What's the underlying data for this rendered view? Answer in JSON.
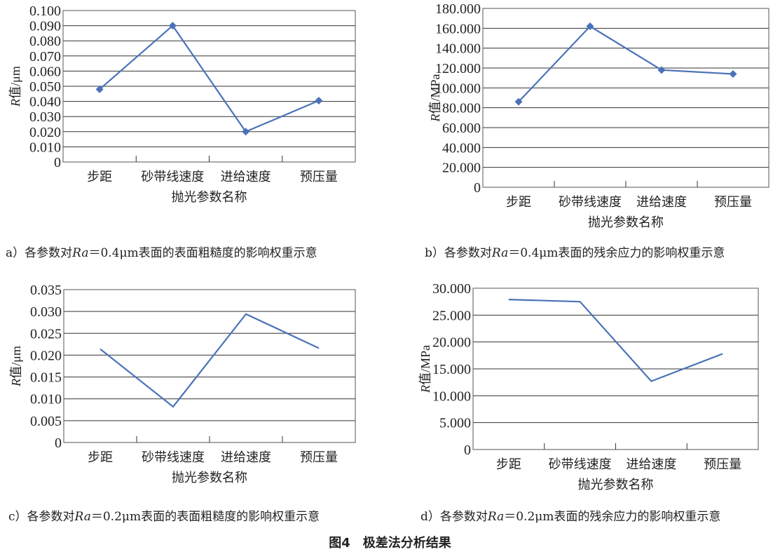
{
  "figure_title": "图4　极差法分析结果",
  "colors": {
    "line": "#4a72b8",
    "grid": "#333333",
    "text": "#222222"
  },
  "chart_data": [
    {
      "type": "line",
      "panel": "a",
      "categories": [
        "步距",
        "砂带线速度",
        "进给速度",
        "预压量"
      ],
      "values": [
        0.048,
        0.09,
        0.02,
        0.0405
      ],
      "markers": "diamond",
      "ylim": [
        0,
        0.1
      ],
      "yticks": [
        "0",
        "0.010",
        "0.020",
        "0.030",
        "0.040",
        "0.050",
        "0.060",
        "0.070",
        "0.080",
        "0.090",
        "0.100"
      ],
      "ylabel": {
        "italic": "R",
        "rest": "值/μm"
      },
      "xlabel": "抛光参数名称",
      "grid": true,
      "caption": {
        "prefix": "a）各参数对",
        "italic": "Ra",
        "rest": "＝0.4μm表面的表面粗糙度的影响权重示意"
      }
    },
    {
      "type": "line",
      "panel": "b",
      "categories": [
        "步距",
        "砂带线速度",
        "进给速度",
        "预压量"
      ],
      "values": [
        86,
        162,
        118,
        114
      ],
      "markers": "diamond",
      "ylim": [
        0,
        180
      ],
      "yticks": [
        "0",
        "20.000",
        "40.000",
        "60.000",
        "80.000",
        "100.000",
        "120.000",
        "140.000",
        "160.000",
        "180.000"
      ],
      "ylabel": {
        "italic": "R",
        "rest": "值/MPa"
      },
      "xlabel": "抛光参数名称",
      "grid": true,
      "caption": {
        "prefix": "b）各参数对",
        "italic": "Ra",
        "rest": "＝0.4μm表面的残余应力的影响权重示意"
      }
    },
    {
      "type": "line",
      "panel": "c",
      "categories": [
        "步距",
        "砂带线速度",
        "进给速度",
        "预压量"
      ],
      "values": [
        0.0214,
        0.0082,
        0.0294,
        0.0216
      ],
      "markers": "none",
      "ylim": [
        0,
        0.035
      ],
      "yticks": [
        "0",
        "0.005",
        "0.010",
        "0.015",
        "0.020",
        "0.025",
        "0.030",
        "0.035"
      ],
      "ylabel": {
        "italic": "R",
        "rest": "值/μm"
      },
      "xlabel": "抛光参数名称",
      "grid": true,
      "caption": {
        "prefix": "c）各参数对",
        "italic": "Ra",
        "rest": "＝0.2μm表面的表面粗糙度的影响权重示意"
      }
    },
    {
      "type": "line",
      "panel": "d",
      "categories": [
        "步距",
        "砂带线速度",
        "进给速度",
        "预压量"
      ],
      "values": [
        27.9,
        27.5,
        12.7,
        17.8
      ],
      "markers": "none",
      "ylim": [
        0,
        30
      ],
      "yticks": [
        "0",
        "5.000",
        "10.000",
        "15.000",
        "20.000",
        "25.000",
        "30.000"
      ],
      "ylabel": {
        "italic": "R",
        "rest": "值/MPa"
      },
      "xlabel": "抛光参数名称",
      "grid": true,
      "caption": {
        "prefix": "d）各参数对",
        "italic": "Ra",
        "rest": "＝0.2μm表面的残余应力的影响权重示意"
      }
    }
  ]
}
